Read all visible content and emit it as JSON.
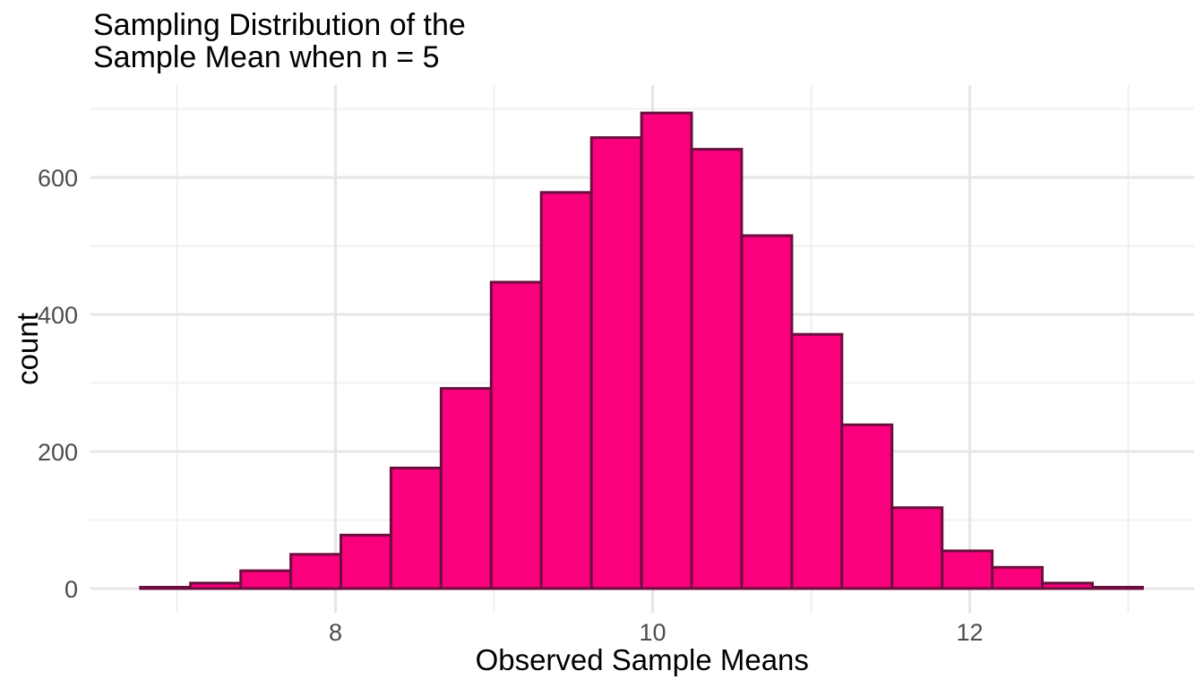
{
  "chart_data": {
    "type": "bar",
    "subtype": "histogram",
    "title": "Sampling Distribution of the\nSample Mean when n = 5",
    "xlabel": "Observed Sample Means",
    "ylabel": "count",
    "bin_start": 6.77,
    "bin_width": 0.316,
    "counts": [
      2,
      8,
      26,
      50,
      78,
      176,
      292,
      447,
      578,
      658,
      694,
      641,
      515,
      371,
      239,
      118,
      55,
      31,
      8,
      2
    ],
    "total_n": 4989,
    "x_ticks": [
      8,
      10,
      12
    ],
    "x_minor_ticks": [
      7,
      9,
      11,
      13
    ],
    "y_ticks": [
      0,
      200,
      400,
      600
    ],
    "y_minor_ticks": [
      100,
      300,
      500,
      700
    ],
    "xlim": [
      6.45,
      13.42
    ],
    "ylim": [
      -35,
      735
    ],
    "grid": true,
    "legend_position": "none",
    "colors": {
      "bar_fill": "#FA007D",
      "bar_stroke": "#6B0E3E",
      "grid_major": "#E6E6E6",
      "grid_minor": "#EFEFEF",
      "tick_label": "#4D4D4D",
      "text": "#000000",
      "background": "#FFFFFF"
    }
  }
}
